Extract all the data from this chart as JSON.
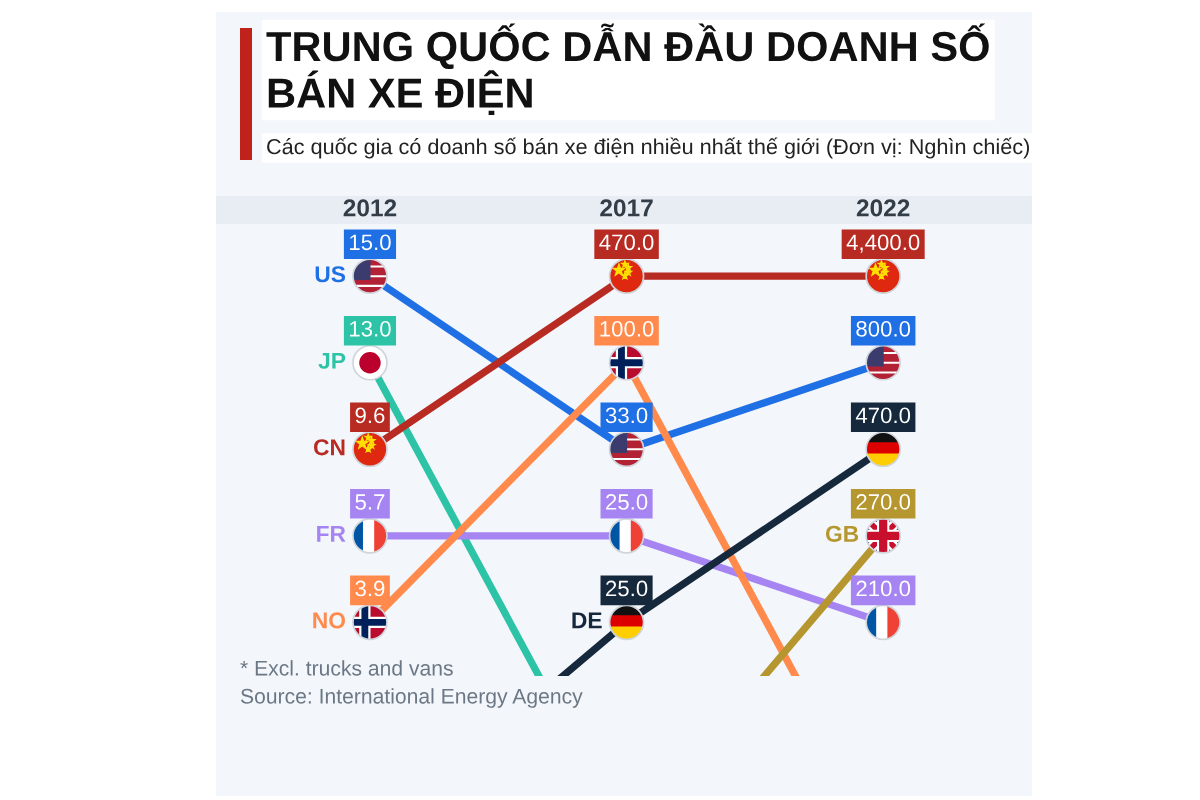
{
  "chart_data": {
    "type": "other",
    "title": "TRUNG QUỐC DẪN ĐẦU DOANH SỐ BÁN XE ĐIỆN",
    "subtitle": "Các quốc gia có doanh số bán xe điện nhiều nhất thế giới (Đơn vị: Nghìn chiếc)",
    "categories": [
      "2012",
      "2017",
      "2022"
    ],
    "data_labels": true,
    "series": [
      {
        "name": "US",
        "color": "#1f6fe5",
        "values": [
          15.0,
          33.0,
          800.0
        ],
        "value_labels": [
          "15.0",
          "33.0",
          "800.0"
        ]
      },
      {
        "name": "JP",
        "color": "#2cc3a6",
        "values": [
          13.0,
          null,
          null
        ],
        "value_labels": [
          "13.0",
          null,
          null
        ]
      },
      {
        "name": "CN",
        "color": "#b82b22",
        "values": [
          9.6,
          470.0,
          4400.0
        ],
        "value_labels": [
          "9.6",
          "470.0",
          "4,400.0"
        ]
      },
      {
        "name": "FR",
        "color": "#a685f2",
        "values": [
          5.7,
          25.0,
          210.0
        ],
        "value_labels": [
          "5.7",
          "25.0",
          "210.0"
        ]
      },
      {
        "name": "NO",
        "color": "#ff8a4c",
        "values": [
          3.9,
          100.0,
          null
        ],
        "value_labels": [
          "3.9",
          "100.0",
          null
        ]
      },
      {
        "name": "DE",
        "color": "#16283c",
        "values": [
          null,
          25.0,
          470.0
        ],
        "value_labels": [
          null,
          "25.0",
          "470.0"
        ]
      },
      {
        "name": "GB",
        "color": "#b5962f",
        "values": [
          null,
          null,
          270.0
        ],
        "value_labels": [
          null,
          null,
          "270.0"
        ]
      }
    ],
    "annotations": [
      "* Excl. trucks and vans",
      "Source: International Energy Agency"
    ]
  }
}
